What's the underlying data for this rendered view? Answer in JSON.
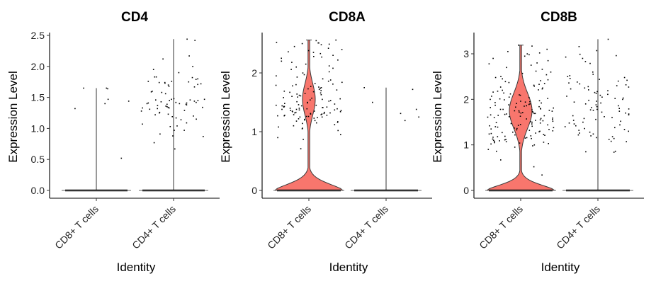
{
  "chart_data": [
    {
      "type": "violin",
      "title": "CD4",
      "xlabel": "Identity",
      "ylabel": "Expression Level",
      "categories": [
        "CD8+ T cells",
        "CD4+ T cells"
      ],
      "yticks": [
        "0.0",
        "0.5",
        "1.0",
        "1.5",
        "2.0",
        "2.5"
      ],
      "ytick_values": [
        0,
        0.5,
        1.0,
        1.5,
        2.0,
        2.5
      ],
      "ylim": [
        -0.06,
        2.62
      ],
      "grid": false,
      "legend": "none",
      "fill_color": "#F8766D",
      "groups": [
        {
          "name": "CD8+ T cells",
          "max": 1.65,
          "violin_shape": "line",
          "nonzero_values": [
            1.65,
            1.65,
            1.4,
            1.44,
            1.47,
            1.64,
            1.32,
            0.52
          ]
        },
        {
          "name": "CD4+ T cells",
          "max": 2.44,
          "violin_shape": "line",
          "nonzero_values": [
            2.44,
            2.42,
            2.17,
            2.12,
            2.0,
            1.95,
            1.9,
            1.83,
            1.83,
            1.82,
            1.8,
            1.79,
            1.76,
            1.76,
            1.75,
            1.74,
            1.74,
            1.73,
            1.72,
            1.71,
            1.7,
            1.68,
            1.67,
            1.6,
            1.59,
            1.58,
            1.56,
            1.48,
            1.47,
            1.47,
            1.46,
            1.46,
            1.45,
            1.45,
            1.44,
            1.43,
            1.42,
            1.42,
            1.41,
            1.41,
            1.4,
            1.4,
            1.39,
            1.39,
            1.38,
            1.37,
            1.36,
            1.35,
            1.34,
            1.34,
            1.33,
            1.33,
            1.32,
            1.31,
            1.29,
            1.28,
            1.26,
            1.25,
            1.23,
            1.22,
            1.2,
            1.19,
            1.17,
            1.15,
            1.14,
            1.09,
            1.07,
            1.04,
            1.03,
            0.97,
            0.97,
            0.91,
            0.88,
            0.87,
            0.77,
            0.67
          ]
        }
      ]
    },
    {
      "type": "violin",
      "title": "CD8A",
      "xlabel": "Identity",
      "ylabel": "Expression Level",
      "categories": [
        "CD8+ T cells",
        "CD4+ T cells"
      ],
      "yticks": [
        "0",
        "1",
        "2"
      ],
      "ytick_values": [
        0,
        1,
        2
      ],
      "ylim": [
        -0.1,
        2.67
      ],
      "grid": false,
      "legend": "none",
      "fill_color": "#F8766D",
      "groups": [
        {
          "name": "CD8+ T cells",
          "max": 2.56,
          "violin_shape": "bimodal",
          "nonzero_values": [
            2.56,
            2.55,
            2.52,
            2.51,
            2.51,
            2.5,
            2.49,
            2.48,
            2.45,
            2.42,
            2.4,
            2.38,
            2.36,
            2.35,
            2.33,
            2.3,
            2.28,
            2.27,
            2.25,
            2.22,
            2.2,
            2.18,
            2.15,
            2.12,
            2.1,
            2.08,
            2.06,
            2.02,
            2.0,
            1.97,
            1.95,
            1.93,
            1.9,
            1.88,
            1.86,
            1.84,
            1.82,
            1.81,
            1.8,
            1.79,
            1.78,
            1.77,
            1.76,
            1.75,
            1.74,
            1.73,
            1.72,
            1.71,
            1.7,
            1.69,
            1.68,
            1.67,
            1.66,
            1.65,
            1.64,
            1.63,
            1.62,
            1.61,
            1.6,
            1.59,
            1.58,
            1.57,
            1.56,
            1.55,
            1.54,
            1.53,
            1.52,
            1.51,
            1.5,
            1.49,
            1.48,
            1.47,
            1.46,
            1.45,
            1.45,
            1.44,
            1.44,
            1.43,
            1.43,
            1.42,
            1.42,
            1.41,
            1.41,
            1.4,
            1.4,
            1.39,
            1.39,
            1.38,
            1.38,
            1.37,
            1.37,
            1.36,
            1.36,
            1.35,
            1.35,
            1.34,
            1.34,
            1.33,
            1.33,
            1.32,
            1.32,
            1.31,
            1.31,
            1.3,
            1.3,
            1.29,
            1.29,
            1.28,
            1.28,
            1.27,
            1.27,
            1.26,
            1.26,
            1.25,
            1.25,
            1.24,
            1.23,
            1.22,
            1.21,
            1.2,
            1.19,
            1.18,
            1.17,
            1.16,
            1.15,
            1.14,
            1.12,
            1.1,
            1.08,
            1.06,
            1.05,
            1.02,
            0.95,
            0.9,
            0.87,
            0.71
          ]
        },
        {
          "name": "CD4+ T cells",
          "max": 1.75,
          "violin_shape": "line",
          "nonzero_values": [
            1.75,
            1.72,
            1.5,
            1.38,
            1.31,
            1.25,
            1.19
          ]
        }
      ]
    },
    {
      "type": "violin",
      "title": "CD8B",
      "xlabel": "Identity",
      "ylabel": "Expression Level",
      "categories": [
        "CD8+ T cells",
        "CD4+ T cells"
      ],
      "yticks": [
        "0",
        "1",
        "2",
        "3"
      ],
      "ytick_values": [
        0,
        1,
        2,
        3
      ],
      "ylim": [
        -0.17,
        3.47
      ],
      "grid": false,
      "legend": "none",
      "fill_color": "#F8766D",
      "groups": [
        {
          "name": "CD8+ T cells",
          "max": 3.19,
          "violin_shape": "bimodal",
          "nonzero_values": [
            3.19,
            3.17,
            3.1,
            3.05,
            3.02,
            3.0,
            2.98,
            2.95,
            2.9,
            2.85,
            2.8,
            2.78,
            2.75,
            2.7,
            2.66,
            2.62,
            2.6,
            2.57,
            2.54,
            2.5,
            2.48,
            2.45,
            2.43,
            2.41,
            2.39,
            2.37,
            2.35,
            2.33,
            2.31,
            2.29,
            2.27,
            2.25,
            2.23,
            2.21,
            2.2,
            2.18,
            2.16,
            2.14,
            2.12,
            2.1,
            2.09,
            2.07,
            2.05,
            2.04,
            2.02,
            2.01,
            2.0,
            1.99,
            1.97,
            1.96,
            1.95,
            1.94,
            1.93,
            1.92,
            1.91,
            1.9,
            1.89,
            1.88,
            1.87,
            1.86,
            1.85,
            1.84,
            1.83,
            1.82,
            1.81,
            1.8,
            1.79,
            1.78,
            1.78,
            1.77,
            1.76,
            1.75,
            1.75,
            1.74,
            1.73,
            1.72,
            1.72,
            1.71,
            1.7,
            1.69,
            1.69,
            1.68,
            1.67,
            1.66,
            1.65,
            1.64,
            1.63,
            1.62,
            1.61,
            1.6,
            1.59,
            1.58,
            1.57,
            1.56,
            1.55,
            1.54,
            1.53,
            1.52,
            1.51,
            1.5,
            1.49,
            1.48,
            1.47,
            1.46,
            1.45,
            1.44,
            1.43,
            1.42,
            1.41,
            1.4,
            1.39,
            1.38,
            1.37,
            1.36,
            1.35,
            1.34,
            1.33,
            1.32,
            1.31,
            1.3,
            1.29,
            1.28,
            1.27,
            1.26,
            1.25,
            1.24,
            1.23,
            1.22,
            1.21,
            1.2,
            1.19,
            1.18,
            1.17,
            1.16,
            1.15,
            1.14,
            1.13,
            1.12,
            1.11,
            1.1,
            1.09,
            1.08,
            1.07,
            1.06,
            1.05,
            1.04,
            1.03,
            1.02,
            1.0,
            0.98,
            0.95,
            0.9,
            0.86,
            0.67,
            0.52,
            0.34
          ]
        },
        {
          "name": "CD4+ T cells",
          "max": 3.32,
          "violin_shape": "line",
          "nonzero_values": [
            3.32,
            3.16,
            3.07,
            2.99,
            2.96,
            2.93,
            2.9,
            2.83,
            2.79,
            2.6,
            2.55,
            2.52,
            2.5,
            2.48,
            2.46,
            2.44,
            2.42,
            2.4,
            2.38,
            2.36,
            2.34,
            2.32,
            2.3,
            2.28,
            2.27,
            2.25,
            2.23,
            2.21,
            2.19,
            2.17,
            2.15,
            2.13,
            2.11,
            2.09,
            2.07,
            2.05,
            2.03,
            2.02,
            2.0,
            1.98,
            1.96,
            1.94,
            1.92,
            1.9,
            1.88,
            1.86,
            1.84,
            1.82,
            1.8,
            1.79,
            1.78,
            1.77,
            1.76,
            1.74,
            1.72,
            1.7,
            1.68,
            1.66,
            1.64,
            1.62,
            1.6,
            1.58,
            1.56,
            1.54,
            1.52,
            1.5,
            1.48,
            1.46,
            1.44,
            1.42,
            1.4,
            1.38,
            1.36,
            1.34,
            1.32,
            1.3,
            1.28,
            1.26,
            1.24,
            1.22,
            1.2,
            1.18,
            1.16,
            1.14,
            1.12,
            1.08,
            1.07,
            0.86,
            0.85,
            0.84
          ]
        }
      ]
    }
  ]
}
